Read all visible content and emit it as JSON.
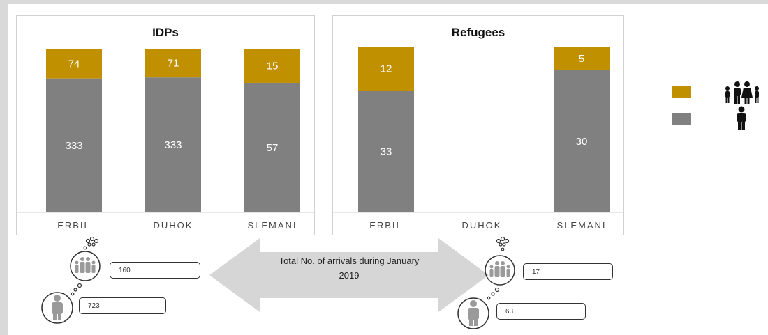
{
  "chart_data": [
    {
      "type": "bar",
      "stacked": true,
      "title": "IDPs",
      "categories": [
        "ERBIL",
        "DUHOK",
        "SLEMANI"
      ],
      "series": [
        {
          "legend": "individuals",
          "color": "#808080",
          "values": [
            333,
            333,
            57
          ]
        },
        {
          "legend": "families",
          "color": "#c09000",
          "values": [
            74,
            71,
            15
          ]
        }
      ],
      "display": "100% stacked; gold top segment, grey bottom segment",
      "grid": false
    },
    {
      "type": "bar",
      "stacked": true,
      "title": "Refugees",
      "categories": [
        "ERBIL",
        "DUHOK",
        "SLEMANI"
      ],
      "series": [
        {
          "legend": "individuals",
          "color": "#808080",
          "values": [
            33,
            null,
            30
          ]
        },
        {
          "legend": "families",
          "color": "#c09000",
          "values": [
            12,
            null,
            5
          ]
        }
      ],
      "display": "100% stacked; gold top segment, grey bottom segment",
      "grid": false
    }
  ],
  "legend": [
    {
      "color": "#c09000",
      "icon": "family-icon"
    },
    {
      "color": "#808080",
      "icon": "person-icon"
    }
  ],
  "summary": {
    "label": "Total No. of arrivals during January 2019",
    "idps": {
      "families": "160",
      "individuals": "723"
    },
    "refugees": {
      "families": "17",
      "individuals": "63"
    }
  }
}
